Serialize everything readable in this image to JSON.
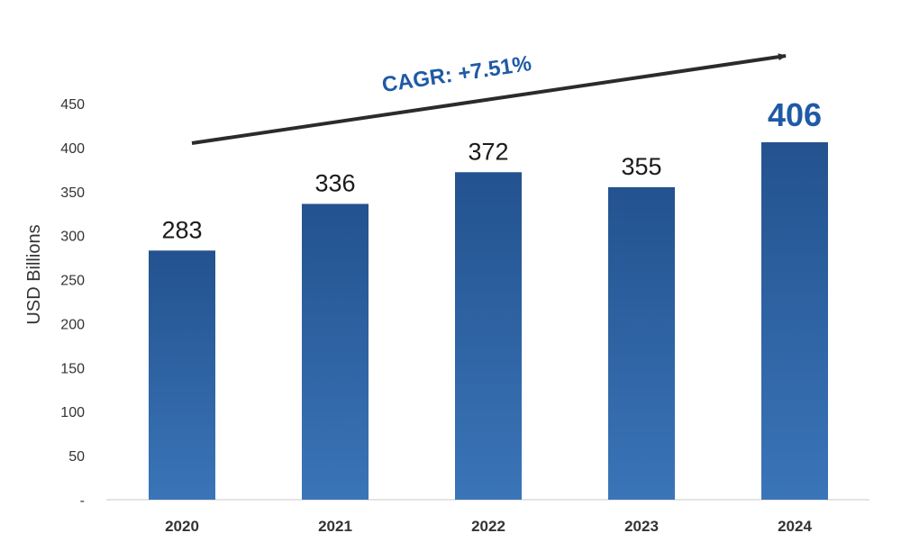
{
  "chart_data": {
    "type": "bar",
    "categories": [
      "2020",
      "2021",
      "2022",
      "2023",
      "2024"
    ],
    "values": [
      283,
      336,
      372,
      355,
      406
    ],
    "data_labels": [
      "283",
      "336",
      "372",
      "355",
      "406"
    ],
    "highlighted_category": "2024",
    "title": "",
    "xlabel": "",
    "ylabel": "USD Billions",
    "ylim": [
      0,
      450
    ],
    "yticks": [
      0,
      50,
      100,
      150,
      200,
      250,
      300,
      350,
      400,
      450
    ],
    "ytick_labels": [
      "-",
      "50",
      "100",
      "150",
      "200",
      "250",
      "300",
      "350",
      "400",
      "450"
    ],
    "grid": false,
    "annotation": {
      "text": "CAGR: +7.51%",
      "style": "upward-trend-arrow"
    },
    "colors": {
      "bar_top": "#23528f",
      "bar_bottom": "#3a75b8",
      "annotation_text": "#1f5aa6",
      "highlight_label": "#1f5aa6",
      "arrow": "#2b2b2b",
      "axis": "#c8c8c8"
    }
  }
}
